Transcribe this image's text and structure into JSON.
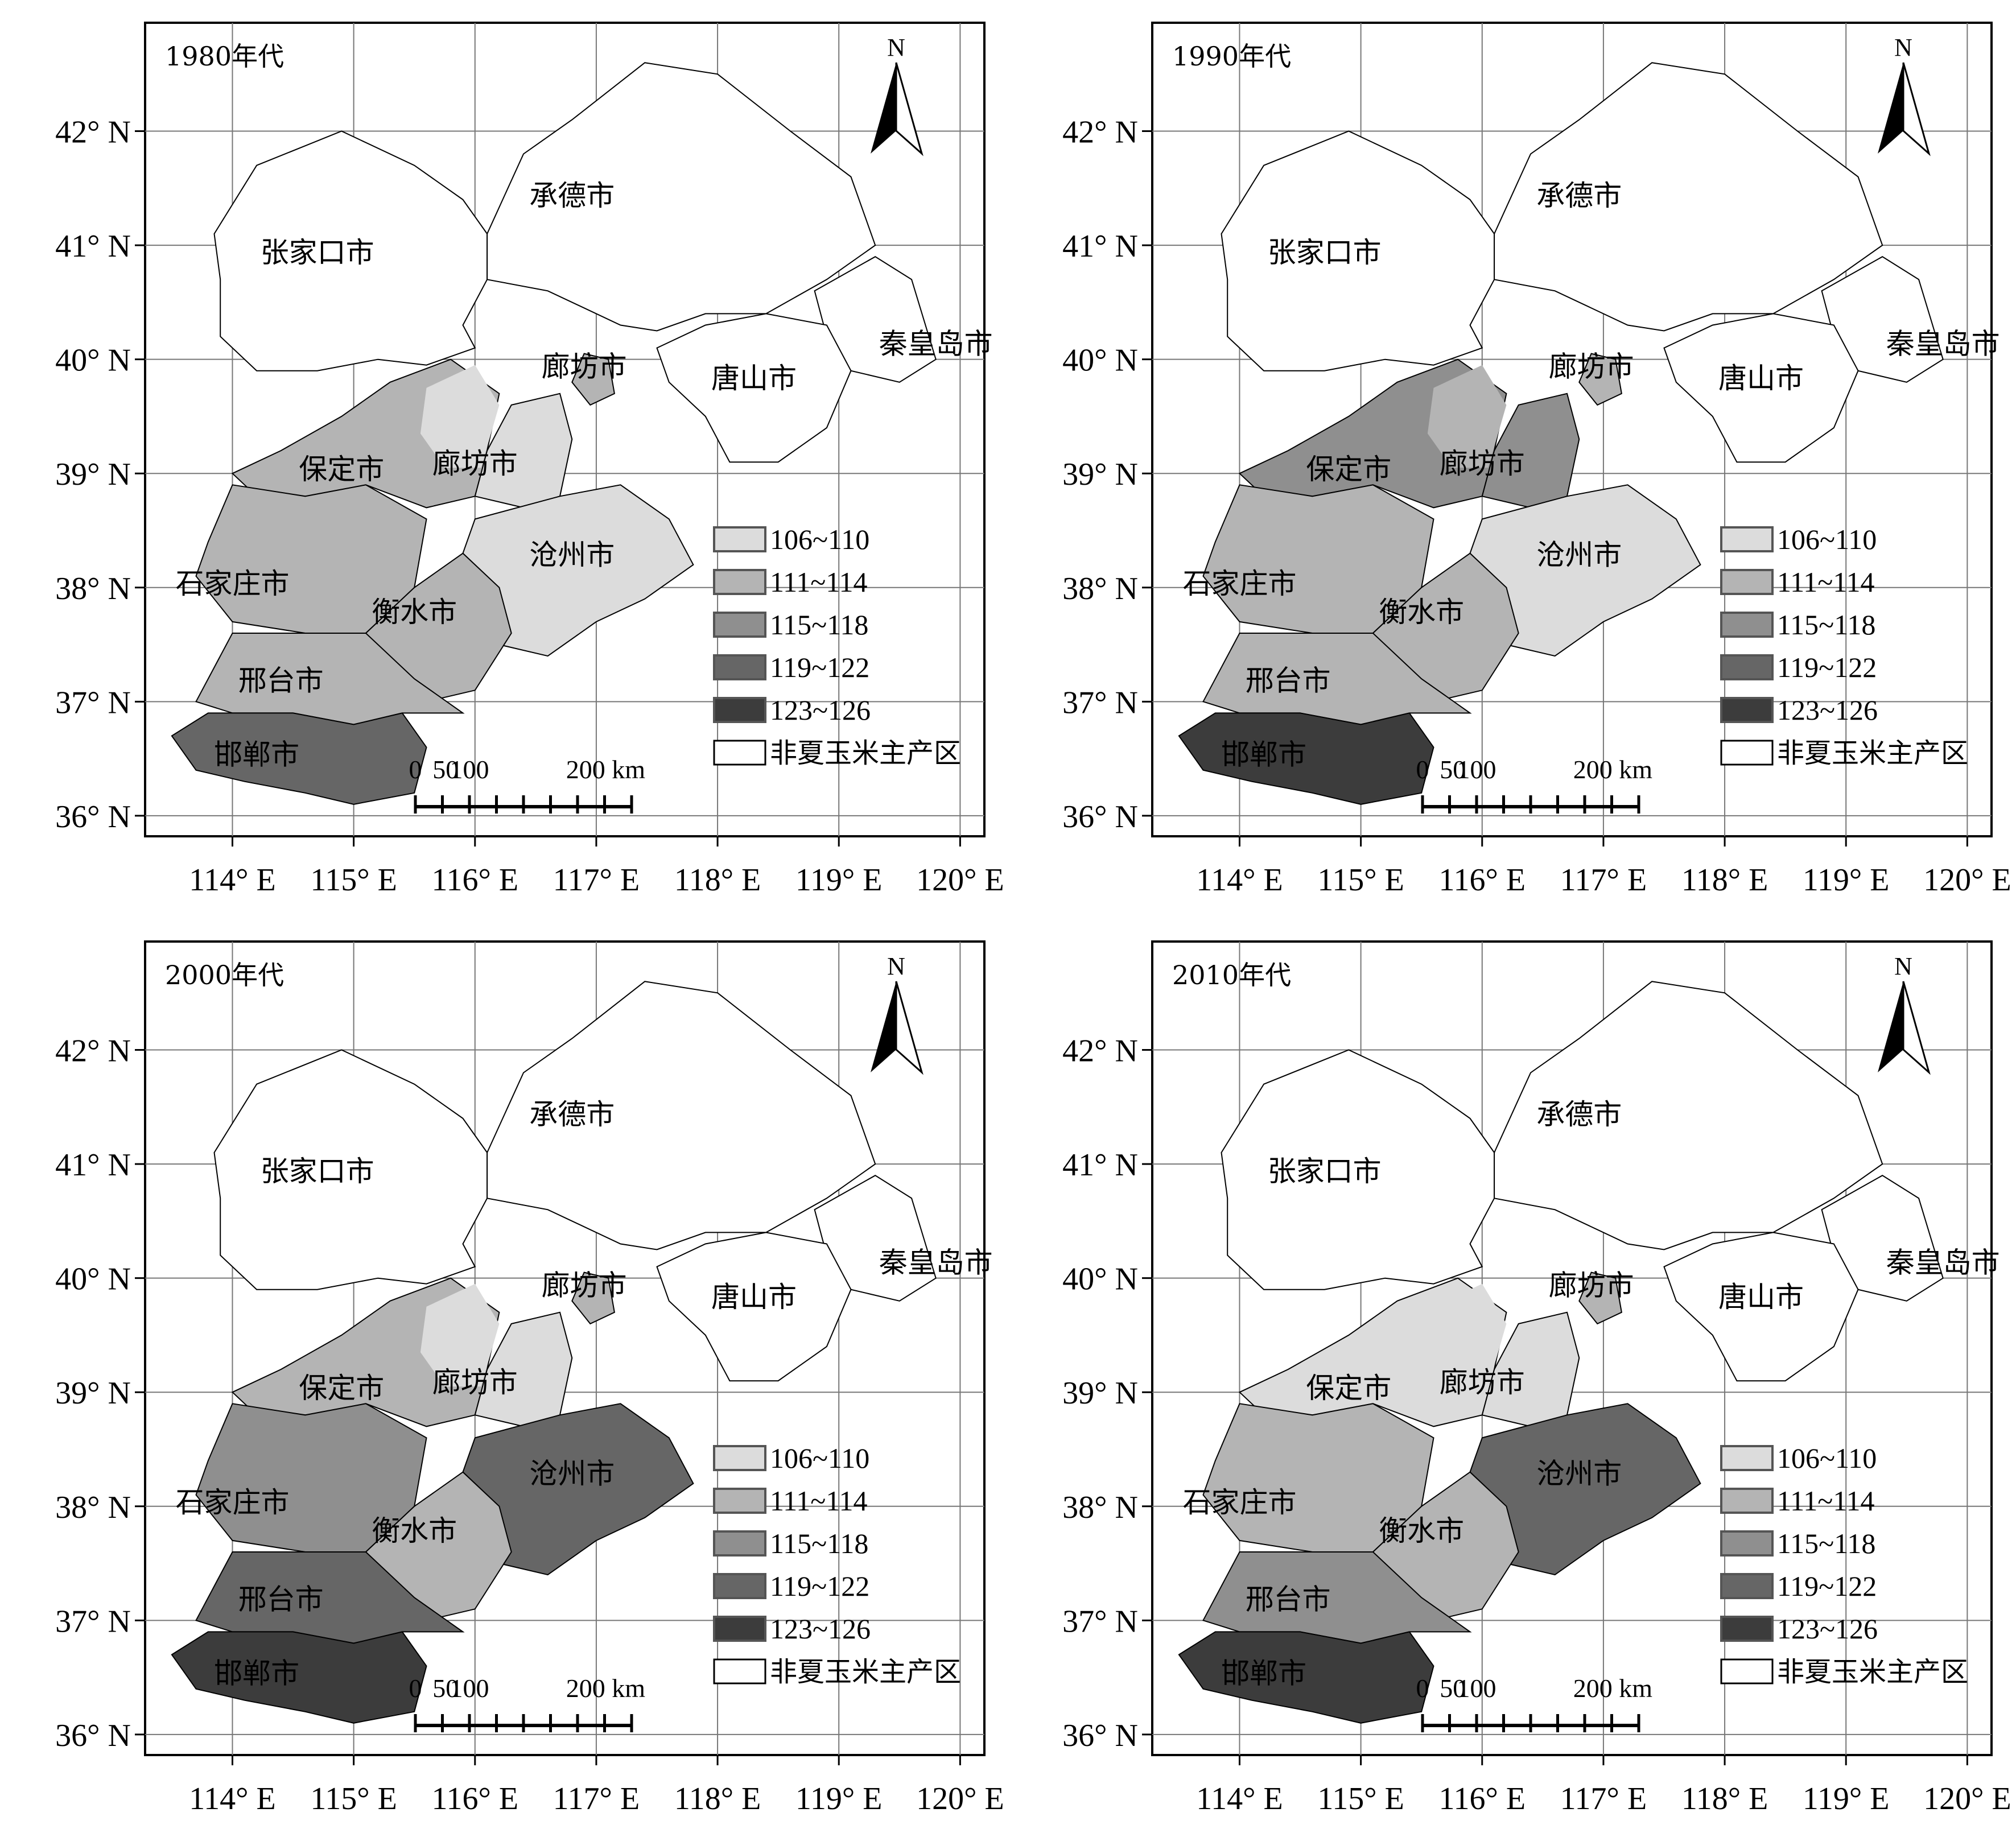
{
  "figure": {
    "x_ticks": [
      "114° E",
      "115° E",
      "116° E",
      "117° E",
      "118° E",
      "119° E",
      "120° E"
    ],
    "y_ticks": [
      "42° N",
      "41° N",
      "40° N",
      "39° N",
      "38° N",
      "37° N",
      "36° N"
    ],
    "north_arrow_label": "N",
    "scale_bar": {
      "labels": [
        "0",
        "50",
        "100",
        "200 km"
      ],
      "values_km": [
        0,
        50,
        100,
        200
      ]
    },
    "legend": [
      {
        "label": "106~110",
        "color": "#dcdcdc"
      },
      {
        "label": "111~114",
        "color": "#b4b4b4"
      },
      {
        "label": "115~118",
        "color": "#8f8f8f"
      },
      {
        "label": "119~122",
        "color": "#666666"
      },
      {
        "label": "123~126",
        "color": "#3c3c3c"
      }
    ],
    "legend_non_region": {
      "label": "非夏玉米主产区",
      "color": "#ffffff"
    },
    "cities": [
      {
        "id": "chengde",
        "name": "承德市"
      },
      {
        "id": "zhangjiakou",
        "name": "张家口市"
      },
      {
        "id": "qinhuangdao",
        "name": "秦皇岛市"
      },
      {
        "id": "langfang_north",
        "name": "廊坊市"
      },
      {
        "id": "tangshan",
        "name": "唐山市"
      },
      {
        "id": "baoding",
        "name": "保定市"
      },
      {
        "id": "langfang",
        "name": "廊坊市"
      },
      {
        "id": "cangzhou",
        "name": "沧州市"
      },
      {
        "id": "shijiazhuang",
        "name": "石家庄市"
      },
      {
        "id": "hengshui",
        "name": "衡水市"
      },
      {
        "id": "xingtai",
        "name": "邢台市"
      },
      {
        "id": "handan",
        "name": "邯郸市"
      }
    ],
    "panels": [
      {
        "decade": "1980年代",
        "zones": {
          "baoding": "111~114",
          "baoding_ne": "106~110",
          "langfang": "106~110",
          "shijiazhuang": "111~114",
          "hengshui": "111~114",
          "cangzhou": "106~110",
          "xingtai": "111~114",
          "handan": "119~122"
        }
      },
      {
        "decade": "1990年代",
        "zones": {
          "baoding": "115~118",
          "baoding_ne": "111~114",
          "langfang": "115~118",
          "shijiazhuang": "111~114",
          "hengshui": "111~114",
          "cangzhou": "106~110",
          "xingtai": "111~114",
          "handan": "123~126"
        }
      },
      {
        "decade": "2000年代",
        "zones": {
          "baoding": "111~114",
          "baoding_ne": "106~110",
          "langfang": "106~110",
          "shijiazhuang": "115~118",
          "hengshui": "111~114",
          "cangzhou": "119~122",
          "xingtai": "119~122",
          "handan": "123~126"
        }
      },
      {
        "decade": "2010年代",
        "zones": {
          "baoding": "106~110",
          "baoding_ne": "106~110",
          "langfang": "106~110",
          "shijiazhuang": "111~114",
          "hengshui": "111~114",
          "cangzhou": "119~122",
          "xingtai": "115~118",
          "handan": "123~126"
        }
      }
    ]
  }
}
